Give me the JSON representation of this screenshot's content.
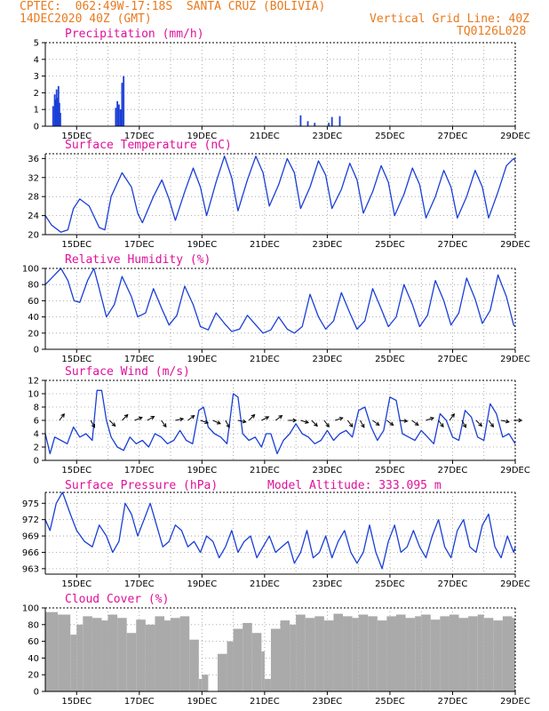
{
  "header": {
    "line1_left": "CPTEC:  062:49W-17:18S  SANTA CRUZ (BOLIVIA)",
    "line2_left": "14DEC2020 40Z (GMT)",
    "line2_right": "Vertical Grid Line: 40Z",
    "line3_right": "TQ0126L028"
  },
  "colors": {
    "header": "#e87a1e",
    "titles": "#e0109a",
    "series": "#1a3fd6",
    "bars": "#1a3fd6",
    "cloud": "#aaaaaa",
    "arrows": "#000000",
    "grid": "#999999"
  },
  "x_ticks": [
    "15DEC",
    "17DEC",
    "19DEC",
    "21DEC",
    "23DEC",
    "25DEC",
    "27DEC",
    "29DEC"
  ],
  "chart_data": [
    {
      "type": "bar",
      "title": "Precipitation (mm/h)",
      "x_range": [
        "14DEC 00Z",
        "29DEC 00Z"
      ],
      "ylim": [
        0,
        5
      ],
      "yticks": [
        0,
        1,
        2,
        3,
        4,
        5
      ],
      "x": [
        14.25,
        14.3,
        14.33,
        14.36,
        14.39,
        14.42,
        14.45,
        14.48,
        16.25,
        16.3,
        16.35,
        16.4,
        16.45,
        16.5,
        22.15,
        22.38,
        22.6,
        23.05,
        23.15,
        23.4
      ],
      "values": [
        1.2,
        1.9,
        1.6,
        2.2,
        1.7,
        2.4,
        1.4,
        0.8,
        1.1,
        1.5,
        1.3,
        1.0,
        2.6,
        3.0,
        0.65,
        0.3,
        0.2,
        0.2,
        0.55,
        0.6
      ]
    },
    {
      "type": "line",
      "title": "Surface Temperature (nC)",
      "x_range": [
        "14DEC 00Z",
        "29DEC 00Z"
      ],
      "ylim": [
        20,
        37
      ],
      "yticks": [
        20,
        24,
        28,
        32,
        36
      ],
      "x": [
        14.0,
        14.2,
        14.5,
        14.72,
        14.9,
        15.1,
        15.4,
        15.72,
        15.9,
        16.1,
        16.45,
        16.75,
        16.95,
        17.1,
        17.45,
        17.72,
        17.95,
        18.15,
        18.45,
        18.72,
        18.95,
        19.15,
        19.45,
        19.72,
        19.95,
        20.15,
        20.45,
        20.72,
        20.95,
        21.15,
        21.45,
        21.72,
        21.95,
        22.15,
        22.45,
        22.72,
        22.95,
        23.15,
        23.45,
        23.72,
        23.95,
        24.15,
        24.45,
        24.72,
        24.95,
        25.15,
        25.45,
        25.72,
        25.95,
        26.15,
        26.45,
        26.72,
        26.95,
        27.15,
        27.45,
        27.72,
        27.95,
        28.15,
        28.45,
        28.72,
        28.95,
        29.0
      ],
      "values": [
        24.0,
        22.0,
        20.5,
        21.0,
        25.5,
        27.5,
        26.0,
        21.5,
        21.0,
        28.0,
        33.0,
        30.0,
        24.5,
        22.5,
        28.0,
        31.5,
        27.5,
        23.0,
        29.0,
        34.0,
        30.0,
        24.0,
        31.0,
        36.5,
        32.0,
        25.0,
        31.5,
        36.5,
        33.0,
        26.0,
        30.5,
        36.0,
        33.0,
        25.5,
        30.0,
        35.5,
        32.5,
        25.5,
        29.5,
        35.0,
        31.5,
        24.5,
        29.0,
        34.5,
        31.0,
        24.0,
        28.5,
        34.0,
        30.5,
        23.5,
        28.0,
        33.5,
        30.0,
        23.5,
        28.0,
        33.5,
        30.0,
        23.5,
        29.0,
        34.5,
        36.0,
        35.5
      ]
    },
    {
      "type": "line",
      "title": "Relative Humidity (%)",
      "x_range": [
        "14DEC 00Z",
        "29DEC 00Z"
      ],
      "ylim": [
        0,
        100
      ],
      "yticks": [
        0,
        20,
        40,
        60,
        80,
        100
      ],
      "x": [
        14.0,
        14.25,
        14.5,
        14.72,
        14.92,
        15.1,
        15.35,
        15.55,
        15.72,
        15.95,
        16.2,
        16.45,
        16.75,
        16.95,
        17.2,
        17.45,
        17.72,
        17.95,
        18.2,
        18.45,
        18.72,
        18.95,
        19.2,
        19.45,
        19.72,
        19.95,
        20.2,
        20.45,
        20.72,
        20.95,
        21.2,
        21.45,
        21.72,
        21.95,
        22.2,
        22.45,
        22.72,
        22.95,
        23.2,
        23.45,
        23.72,
        23.95,
        24.2,
        24.45,
        24.72,
        24.95,
        25.2,
        25.45,
        25.72,
        25.95,
        26.2,
        26.45,
        26.72,
        26.95,
        27.2,
        27.45,
        27.72,
        27.95,
        28.2,
        28.45,
        28.72,
        28.95,
        29.0
      ],
      "values": [
        80,
        90,
        100,
        85,
        60,
        58,
        85,
        100,
        75,
        40,
        55,
        90,
        65,
        40,
        45,
        75,
        50,
        30,
        42,
        78,
        55,
        28,
        24,
        45,
        32,
        22,
        25,
        42,
        30,
        20,
        24,
        40,
        25,
        20,
        28,
        68,
        40,
        25,
        35,
        70,
        45,
        25,
        35,
        75,
        50,
        28,
        40,
        80,
        55,
        28,
        42,
        85,
        60,
        30,
        45,
        88,
        62,
        32,
        48,
        92,
        65,
        30,
        28
      ]
    },
    {
      "type": "line",
      "title": "Surface Wind (m/s)",
      "x_range": [
        "14DEC 00Z",
        "29DEC 00Z"
      ],
      "ylim": [
        0,
        12
      ],
      "yticks": [
        0,
        2,
        4,
        6,
        8,
        10,
        12
      ],
      "x": [
        14.0,
        14.15,
        14.3,
        14.5,
        14.7,
        14.9,
        15.1,
        15.3,
        15.5,
        15.65,
        15.8,
        15.95,
        16.1,
        16.3,
        16.5,
        16.7,
        16.9,
        17.1,
        17.3,
        17.5,
        17.7,
        17.9,
        18.1,
        18.3,
        18.5,
        18.7,
        18.9,
        19.05,
        19.2,
        19.4,
        19.6,
        19.8,
        20.0,
        20.15,
        20.3,
        20.5,
        20.7,
        20.9,
        21.05,
        21.2,
        21.4,
        21.6,
        21.8,
        22.0,
        22.2,
        22.4,
        22.6,
        22.8,
        23.0,
        23.2,
        23.4,
        23.6,
        23.8,
        24.0,
        24.2,
        24.4,
        24.6,
        24.8,
        25.0,
        25.2,
        25.4,
        25.6,
        25.8,
        26.0,
        26.2,
        26.4,
        26.6,
        26.8,
        27.0,
        27.2,
        27.4,
        27.6,
        27.8,
        28.0,
        28.2,
        28.4,
        28.6,
        28.8,
        29.0
      ],
      "values": [
        4.0,
        1.0,
        3.5,
        3.0,
        2.5,
        5.0,
        3.5,
        4.0,
        3.0,
        10.5,
        10.5,
        6.0,
        3.5,
        2.0,
        1.5,
        3.5,
        2.5,
        3.0,
        2.0,
        4.0,
        3.5,
        2.5,
        3.0,
        4.5,
        3.0,
        2.5,
        7.5,
        8.0,
        5.0,
        4.0,
        3.5,
        2.5,
        10.0,
        9.5,
        4.0,
        3.0,
        3.5,
        2.0,
        4.0,
        4.0,
        1.0,
        3.0,
        4.0,
        5.5,
        4.0,
        3.5,
        2.5,
        3.0,
        4.5,
        3.0,
        4.0,
        4.5,
        3.5,
        7.5,
        8.0,
        5.0,
        3.0,
        4.5,
        9.5,
        9.0,
        4.0,
        3.5,
        3.0,
        4.5,
        3.5,
        2.5,
        7.0,
        6.0,
        3.5,
        3.0,
        7.5,
        6.5,
        3.5,
        3.0,
        8.5,
        7.0,
        3.5,
        4.0,
        2.5
      ],
      "wind_arrows": {
        "x": [
          14.45,
          15.45,
          16.05,
          16.45,
          16.85,
          17.25,
          17.7,
          18.15,
          18.55,
          18.95,
          19.35,
          19.75,
          20.15,
          20.5,
          20.9,
          21.35,
          21.75,
          22.15,
          22.5,
          22.9,
          23.25,
          23.65,
          24.05,
          24.45,
          24.9,
          25.3,
          25.7,
          26.15,
          26.55,
          26.9,
          27.3,
          27.75,
          28.15,
          28.55,
          28.95
        ],
        "u": [
          0.6,
          0.5,
          0.7,
          0.7,
          1.0,
          0.9,
          0.6,
          1.0,
          0.8,
          0.9,
          0.9,
          0.5,
          1.0,
          0.7,
          1.0,
          0.8,
          1.0,
          1.0,
          0.7,
          0.6,
          0.9,
          0.6,
          0.5,
          0.8,
          0.8,
          1.0,
          0.8,
          0.9,
          0.6,
          0.6,
          0.5,
          0.7,
          0.6,
          1.0,
          1.0
        ],
        "v": [
          0.8,
          -0.9,
          -0.7,
          0.7,
          0.4,
          0.5,
          -0.8,
          0.2,
          0.6,
          -0.3,
          -0.4,
          -0.9,
          -0.2,
          0.7,
          0.5,
          0.6,
          0.0,
          -0.3,
          -0.7,
          -0.8,
          0.3,
          -0.8,
          -0.9,
          -0.6,
          -0.6,
          -0.1,
          -0.6,
          0.3,
          -0.8,
          0.8,
          -0.9,
          -0.7,
          -0.8,
          -0.2,
          0.0
        ]
      }
    },
    {
      "type": "line",
      "title": "Surface Pressure (hPa)",
      "annotation": "Model Altitude: 333.095 m",
      "x_range": [
        "14DEC 00Z",
        "29DEC 00Z"
      ],
      "ylim": [
        962,
        977
      ],
      "yticks": [
        963,
        966,
        969,
        972,
        975
      ],
      "x": [
        14.0,
        14.15,
        14.35,
        14.55,
        14.8,
        15.0,
        15.25,
        15.5,
        15.72,
        15.95,
        16.15,
        16.35,
        16.55,
        16.75,
        16.95,
        17.15,
        17.35,
        17.55,
        17.75,
        17.95,
        18.15,
        18.35,
        18.55,
        18.75,
        18.95,
        19.15,
        19.35,
        19.55,
        19.75,
        19.95,
        20.15,
        20.35,
        20.55,
        20.75,
        20.95,
        21.15,
        21.35,
        21.55,
        21.75,
        21.95,
        22.15,
        22.35,
        22.55,
        22.75,
        22.95,
        23.15,
        23.35,
        23.55,
        23.75,
        23.95,
        24.15,
        24.35,
        24.55,
        24.75,
        24.95,
        25.15,
        25.35,
        25.55,
        25.75,
        25.95,
        26.15,
        26.35,
        26.55,
        26.75,
        26.95,
        27.15,
        27.35,
        27.55,
        27.75,
        27.95,
        28.15,
        28.35,
        28.55,
        28.75,
        28.95,
        29.0
      ],
      "values": [
        972,
        970,
        975,
        977,
        973,
        970,
        968,
        967,
        971,
        969,
        966,
        968,
        975,
        973,
        969,
        972,
        975,
        971,
        967,
        968,
        971,
        970,
        967,
        968,
        966,
        969,
        968,
        965,
        967,
        970,
        966,
        968,
        969,
        965,
        967,
        969,
        966,
        967,
        968,
        964,
        966,
        970,
        965,
        966,
        969,
        965,
        968,
        970,
        966,
        964,
        966,
        971,
        966,
        963,
        968,
        971,
        966,
        967,
        970,
        967,
        965,
        969,
        972,
        967,
        965,
        970,
        972,
        967,
        966,
        971,
        973,
        967,
        965,
        969,
        966,
        967
      ]
    },
    {
      "type": "bar",
      "title": "Cloud Cover (%)",
      "x_range": [
        "14DEC 00Z",
        "29DEC 00Z"
      ],
      "ylim": [
        0,
        100
      ],
      "yticks": [
        0,
        20,
        40,
        60,
        80,
        100
      ],
      "segments_x": [
        14.0,
        14.4,
        14.8,
        15.0,
        15.2,
        15.5,
        15.8,
        16.0,
        16.3,
        16.6,
        16.9,
        17.2,
        17.5,
        17.8,
        18.0,
        18.3,
        18.6,
        18.9,
        19.0,
        19.2,
        19.5,
        19.8,
        20.0,
        20.3,
        20.6,
        20.9,
        21.0,
        21.2,
        21.5,
        21.8,
        22.0,
        22.3,
        22.6,
        22.9,
        23.2,
        23.5,
        23.8,
        24.0,
        24.3,
        24.6,
        24.9,
        25.2,
        25.5,
        25.8,
        26.0,
        26.3,
        26.6,
        26.9,
        27.2,
        27.5,
        27.8,
        28.0,
        28.3,
        28.6,
        28.9
      ],
      "values": [
        95,
        92,
        68,
        80,
        90,
        88,
        85,
        92,
        88,
        70,
        86,
        80,
        90,
        85,
        88,
        90,
        62,
        15,
        20,
        0,
        45,
        60,
        75,
        82,
        70,
        48,
        15,
        75,
        85,
        80,
        92,
        88,
        90,
        85,
        93,
        90,
        88,
        92,
        90,
        85,
        90,
        92,
        88,
        90,
        92,
        86,
        90,
        92,
        88,
        90,
        92,
        88,
        85,
        90,
        88
      ]
    }
  ]
}
